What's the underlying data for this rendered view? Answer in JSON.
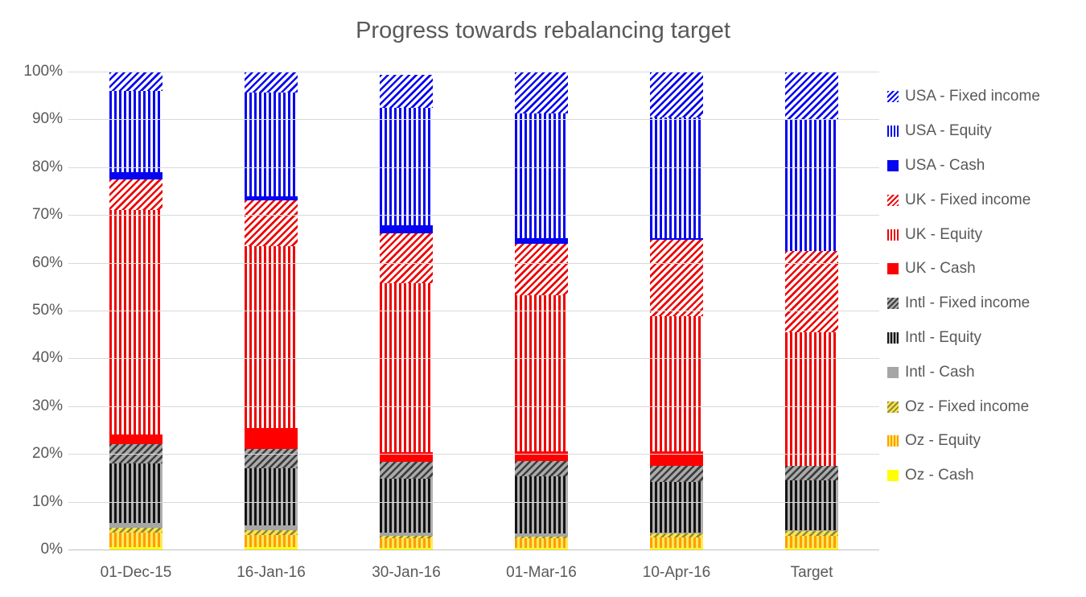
{
  "chart_data": {
    "type": "bar",
    "subtype": "stacked-100",
    "title": "Progress towards rebalancing target",
    "categories": [
      "01-Dec-15",
      "16-Jan-16",
      "30-Jan-16",
      "01-Mar-16",
      "10-Apr-16",
      "Target"
    ],
    "y_ticks": [
      "100%",
      "90%",
      "80%",
      "70%",
      "60%",
      "50%",
      "40%",
      "30%",
      "20%",
      "10%",
      "0%"
    ],
    "ylim": [
      0,
      100
    ],
    "grid": true,
    "legend_position": "right",
    "stack_order_note": "series listed bottom-to-top of the stack; legend shows reverse order",
    "series": [
      {
        "name": "Oz - Cash",
        "pattern": "solid",
        "color": "#FFFF00",
        "bg": "#FFFF00",
        "values": [
          0.5,
          0.5,
          0.4,
          0.3,
          0.4,
          0.3
        ]
      },
      {
        "name": "Oz - Equity",
        "pattern": "vert",
        "color": "#FF9E00",
        "bg": "#FFE95E",
        "values": [
          3.0,
          2.5,
          2.0,
          2.0,
          2.2,
          2.5
        ]
      },
      {
        "name": "Oz - Fixed income",
        "pattern": "diag",
        "color": "#8C8C3F",
        "bg": "#FFE34C",
        "values": [
          1.0,
          1.0,
          0.4,
          0.4,
          0.7,
          1.0
        ]
      },
      {
        "name": "Intl - Cash",
        "pattern": "solid",
        "color": "#A6A6A6",
        "bg": "#A6A6A6",
        "values": [
          1.0,
          1.0,
          0.7,
          0.6,
          0.2,
          0.2
        ]
      },
      {
        "name": "Intl - Equity",
        "pattern": "vert",
        "color": "#141414",
        "bg": "#B0B0B0",
        "values": [
          12.5,
          12.0,
          11.3,
          12.1,
          10.6,
          10.5
        ]
      },
      {
        "name": "Intl - Fixed income",
        "pattern": "diag",
        "color": "#3D3D3D",
        "bg": "#ABABAB",
        "values": [
          4.0,
          4.0,
          3.5,
          3.2,
          3.4,
          3.0
        ]
      },
      {
        "name": "UK - Cash",
        "pattern": "solid",
        "color": "#FF0000",
        "bg": "#FF0000",
        "values": [
          2.0,
          4.5,
          2.1,
          1.9,
          3.0,
          0.0
        ]
      },
      {
        "name": "UK - Equity",
        "pattern": "vert",
        "color": "#EE0000",
        "bg": "#FFFFFF",
        "values": [
          47.0,
          38.0,
          35.3,
          32.7,
          28.4,
          28.0
        ]
      },
      {
        "name": "UK - Fixed income",
        "pattern": "diag",
        "color": "#EE0000",
        "bg": "#FFFFFF",
        "values": [
          6.5,
          9.5,
          10.4,
          10.7,
          16.0,
          17.0
        ]
      },
      {
        "name": "USA - Cash",
        "pattern": "solid",
        "color": "#0505F0",
        "bg": "#0505F0",
        "values": [
          1.5,
          1.0,
          1.7,
          1.2,
          0.2,
          0.0
        ]
      },
      {
        "name": "USA - Equity",
        "pattern": "vert",
        "color": "#0505F0",
        "bg": "#FFFFFF",
        "values": [
          17.0,
          21.7,
          24.6,
          26.1,
          25.3,
          27.5
        ]
      },
      {
        "name": "USA - Fixed income",
        "pattern": "diag",
        "color": "#0505F0",
        "bg": "#FFFFFF",
        "values": [
          4.0,
          4.3,
          6.9,
          8.8,
          9.6,
          10.0
        ]
      }
    ],
    "colors": {
      "text": "#595959",
      "gridline": "#D9D9D9",
      "axis_line": "#BFBFBF",
      "usa": "#0505F0",
      "uk": "#EE0000",
      "intl": "#1A1A1A",
      "intl_cash": "#A6A6A6",
      "oz_equity": "#FF9E00",
      "oz_cash": "#FFFF00"
    }
  }
}
